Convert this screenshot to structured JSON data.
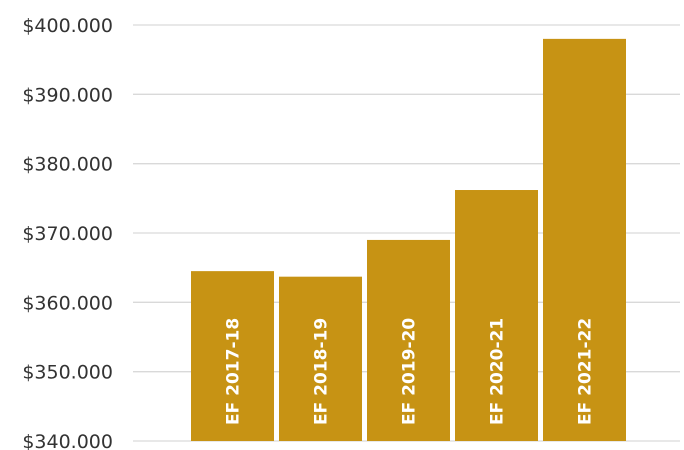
{
  "chart_data": {
    "type": "bar",
    "categories": [
      "EF 2017-18",
      "EF 2018-19",
      "EF 2019-20",
      "EF 2020-21",
      "EF 2021-22"
    ],
    "values": [
      364500,
      363700,
      369000,
      376200,
      398000
    ],
    "ylim": [
      340000,
      400000
    ],
    "yticks": [
      340000,
      350000,
      360000,
      370000,
      380000,
      390000,
      400000
    ],
    "ytick_labels": [
      "$340.000",
      "$350.000",
      "$360.000",
      "$370.000",
      "$380.000",
      "$390.000",
      "$400.000"
    ],
    "grid": true,
    "bar_color": "#c79314",
    "labels_inside_bars": true
  }
}
